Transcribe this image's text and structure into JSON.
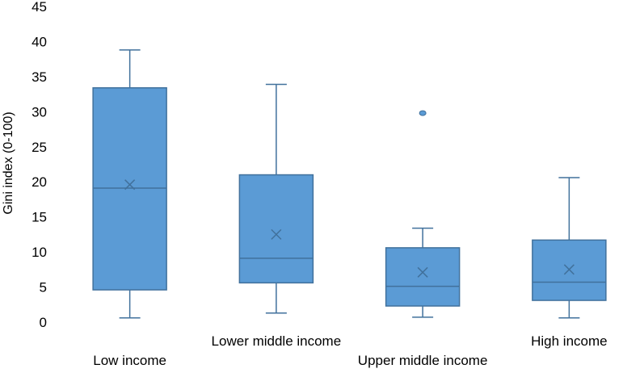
{
  "chart_data": {
    "type": "box",
    "ylabel": "Gini index (0-100)",
    "ylim": [
      0,
      45
    ],
    "yticks": [
      0,
      5,
      10,
      15,
      20,
      25,
      30,
      35,
      40,
      45
    ],
    "grid": false,
    "legend": "none",
    "box_color": "#5B9BD5",
    "box_edge_color": "#41719C",
    "categories": [
      "Low income",
      "Lower middle income",
      "Upper middle income",
      "High income"
    ],
    "boxes": [
      {
        "category": "Low income",
        "whisker_low": 0.6,
        "q1": 4.6,
        "median": 19.1,
        "q3": 33.4,
        "whisker_high": 38.8,
        "mean": 19.6,
        "outliers": []
      },
      {
        "category": "Lower middle income",
        "whisker_low": 1.3,
        "q1": 5.6,
        "median": 9.1,
        "q3": 21.0,
        "whisker_high": 33.9,
        "mean": 12.5,
        "outliers": []
      },
      {
        "category": "Upper middle income",
        "whisker_low": 0.7,
        "q1": 2.3,
        "median": 5.1,
        "q3": 10.6,
        "whisker_high": 13.4,
        "mean": 7.1,
        "outliers": [
          29.8
        ]
      },
      {
        "category": "High income",
        "whisker_low": 0.6,
        "q1": 3.1,
        "median": 5.7,
        "q3": 11.7,
        "whisker_high": 20.6,
        "mean": 7.5,
        "outliers": []
      }
    ]
  }
}
